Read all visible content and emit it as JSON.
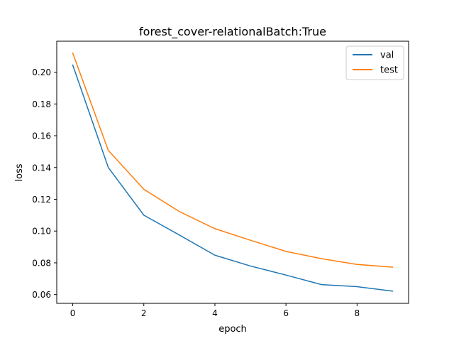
{
  "chart_data": {
    "type": "line",
    "title": "forest_cover-relationalBatch:True",
    "xlabel": "epoch",
    "ylabel": "loss",
    "xlim": [
      -0.45,
      9.45
    ],
    "ylim": [
      0.0545,
      0.2195
    ],
    "xticks": [
      0,
      2,
      4,
      6,
      8
    ],
    "xtick_labels": [
      "0",
      "2",
      "4",
      "6",
      "8"
    ],
    "yticks": [
      0.06,
      0.08,
      0.1,
      0.12,
      0.14,
      0.16,
      0.18,
      0.2
    ],
    "ytick_labels": [
      "0.06",
      "0.08",
      "0.10",
      "0.12",
      "0.14",
      "0.16",
      "0.18",
      "0.20"
    ],
    "grid": false,
    "legend_position": "top-right",
    "x": [
      0,
      1,
      2,
      3,
      4,
      5,
      6,
      7,
      8,
      9
    ],
    "series": [
      {
        "name": "val",
        "color": "#1f77b4",
        "values": [
          0.2045,
          0.14,
          0.11,
          0.0975,
          0.0848,
          0.078,
          0.0723,
          0.0663,
          0.065,
          0.0622
        ]
      },
      {
        "name": "test",
        "color": "#ff7f0e",
        "values": [
          0.212,
          0.1508,
          0.1263,
          0.1123,
          0.1015,
          0.0942,
          0.0872,
          0.0826,
          0.079,
          0.0773
        ]
      }
    ]
  }
}
